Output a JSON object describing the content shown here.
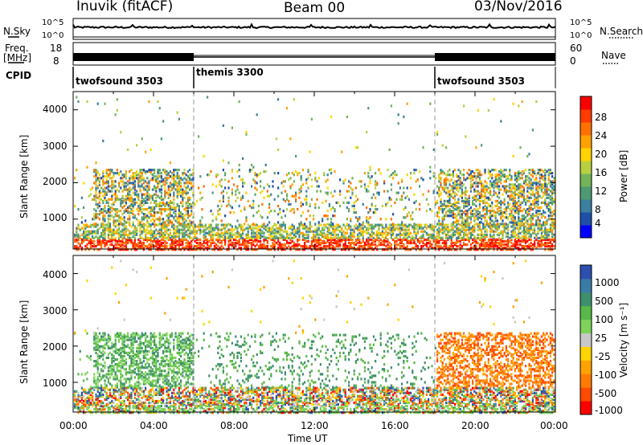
{
  "header": {
    "station": "Inuvik (fitACF)",
    "beam": "Beam 00",
    "date": "03/Nov/2016"
  },
  "strip_labels": {
    "nsky": "N.Sky",
    "nsky_ticks": [
      "10^5",
      "10^0"
    ],
    "nsearch": "N.Search",
    "nsearch_ticks": [
      "10^5",
      "10^0"
    ],
    "freq": "Freq.",
    "freq_unit": "[MHz]",
    "freq_ticks": [
      "18",
      "8"
    ],
    "nave": "Nave",
    "nave_ticks": [
      "60",
      "0"
    ],
    "cpid": "CPID"
  },
  "cpid_segments": [
    {
      "label": "twofsound 3503",
      "start_hour": 0
    },
    {
      "label": "themis 3300",
      "start_hour": 6
    },
    {
      "label": "twofsound 3503",
      "start_hour": 18
    }
  ],
  "x_ticks": [
    "00:00",
    "04:00",
    "08:00",
    "12:00",
    "16:00",
    "20:00",
    "00:00"
  ],
  "x_label": "Time UT",
  "power_panel": {
    "ylabel": "Slant Range [km]",
    "y_ticks": [
      "4000",
      "3000",
      "2000",
      "1000"
    ],
    "cbar_label": "Power [dB]",
    "cbar_ticks": [
      "28",
      "24",
      "20",
      "16",
      "12",
      "8",
      "4"
    ],
    "cbar_colors": [
      "#0000ff",
      "#1f4fa8",
      "#3c7f9e",
      "#4f9a72",
      "#73b35a",
      "#b8d040",
      "#ffd400",
      "#ffa100",
      "#ff7000",
      "#ff3b00",
      "#ff0000"
    ]
  },
  "velocity_panel": {
    "ylabel": "Slant Range [km]",
    "y_ticks": [
      "4000",
      "3000",
      "2000",
      "1000"
    ],
    "cbar_label": "Velocity [m s⁻¹]",
    "cbar_ticks": [
      "1000",
      "500",
      "100",
      "25",
      "-25",
      "-100",
      "-500",
      "-1000"
    ],
    "cbar_colors": [
      "#2c4fb0",
      "#3a7ca8",
      "#3f8f6f",
      "#59b848",
      "#7ed35a",
      "#c8c8c8",
      "#ffd400",
      "#ffa200",
      "#ff7a00",
      "#ff4a00",
      "#ff0000"
    ]
  },
  "chart_data": {
    "type": "heatmap",
    "x_range_hours": [
      0,
      24
    ],
    "y_range_km": [
      180,
      4500
    ],
    "y_ticks_km": [
      1000,
      2000,
      3000,
      4000
    ],
    "power_range_db": [
      0,
      30
    ],
    "velocity_range_ms": [
      -1000,
      1000
    ],
    "mode_change_hours": [
      6,
      18
    ],
    "nsky_log_range": [
      0,
      5
    ],
    "freq_range_mhz": [
      8,
      18
    ],
    "nave_range": [
      0,
      60
    ]
  }
}
